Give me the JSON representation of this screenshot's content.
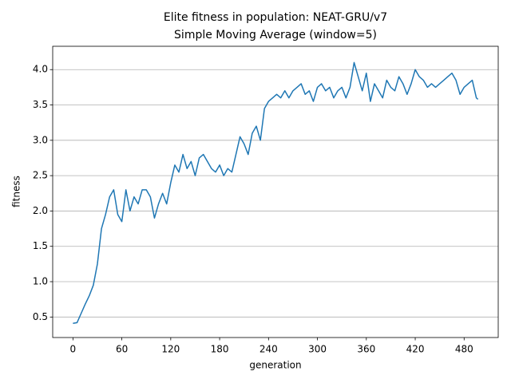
{
  "chart_data": {
    "type": "line",
    "title": "Elite fitness in population: NEAT-GRU/v7",
    "subtitle": "Simple Moving Average (window=5)",
    "x_label": "generation",
    "y_label": "fitness",
    "x": [
      0,
      5,
      10,
      15,
      20,
      25,
      30,
      35,
      40,
      45,
      50,
      55,
      60,
      65,
      70,
      75,
      80,
      85,
      90,
      95,
      100,
      105,
      110,
      115,
      120,
      125,
      130,
      135,
      140,
      145,
      150,
      155,
      160,
      165,
      170,
      175,
      180,
      185,
      190,
      195,
      200,
      205,
      210,
      215,
      220,
      225,
      230,
      235,
      240,
      245,
      250,
      255,
      260,
      265,
      270,
      275,
      280,
      285,
      290,
      295,
      300,
      305,
      310,
      315,
      320,
      325,
      330,
      335,
      340,
      345,
      350,
      355,
      360,
      365,
      370,
      375,
      380,
      385,
      390,
      395,
      400,
      405,
      410,
      415,
      420,
      425,
      430,
      435,
      440,
      445,
      450,
      455,
      460,
      465,
      470,
      475,
      480,
      485,
      490,
      495,
      497
    ],
    "series": [
      {
        "color": "#1f77b4",
        "values": [
          0.41,
          0.42,
          0.55,
          0.68,
          0.8,
          0.95,
          1.25,
          1.75,
          1.95,
          2.2,
          2.3,
          1.95,
          1.85,
          2.3,
          2.0,
          2.2,
          2.1,
          2.3,
          2.3,
          2.2,
          1.9,
          2.1,
          2.25,
          2.1,
          2.4,
          2.65,
          2.55,
          2.8,
          2.6,
          2.7,
          2.5,
          2.75,
          2.8,
          2.7,
          2.6,
          2.55,
          2.65,
          2.5,
          2.6,
          2.55,
          2.8,
          3.05,
          2.95,
          2.8,
          3.1,
          3.2,
          3.0,
          3.45,
          3.55,
          3.6,
          3.65,
          3.6,
          3.7,
          3.6,
          3.7,
          3.75,
          3.8,
          3.65,
          3.7,
          3.55,
          3.75,
          3.8,
          3.7,
          3.75,
          3.6,
          3.7,
          3.75,
          3.6,
          3.75,
          4.1,
          3.9,
          3.7,
          3.95,
          3.55,
          3.8,
          3.7,
          3.6,
          3.85,
          3.75,
          3.7,
          3.9,
          3.8,
          3.65,
          3.8,
          4.0,
          3.9,
          3.85,
          3.75,
          3.8,
          3.75,
          3.8,
          3.85,
          3.9,
          3.95,
          3.85,
          3.65,
          3.75,
          3.8,
          3.85,
          3.6,
          3.58
        ]
      }
    ],
    "xlim": [
      -24.85,
      521.85
    ],
    "ylim": [
      0.21,
      4.33
    ],
    "xticks": [
      0,
      60,
      120,
      180,
      240,
      300,
      360,
      420,
      480
    ],
    "yticks": [
      0.5,
      {
        "value": 1,
        "label": "1.0"
      },
      1.5,
      {
        "value": 2,
        "label": "2.0"
      },
      2.5,
      {
        "value": 3,
        "label": "3.0"
      },
      3.5,
      {
        "value": 4,
        "label": "4.0"
      }
    ],
    "grid": "y"
  }
}
